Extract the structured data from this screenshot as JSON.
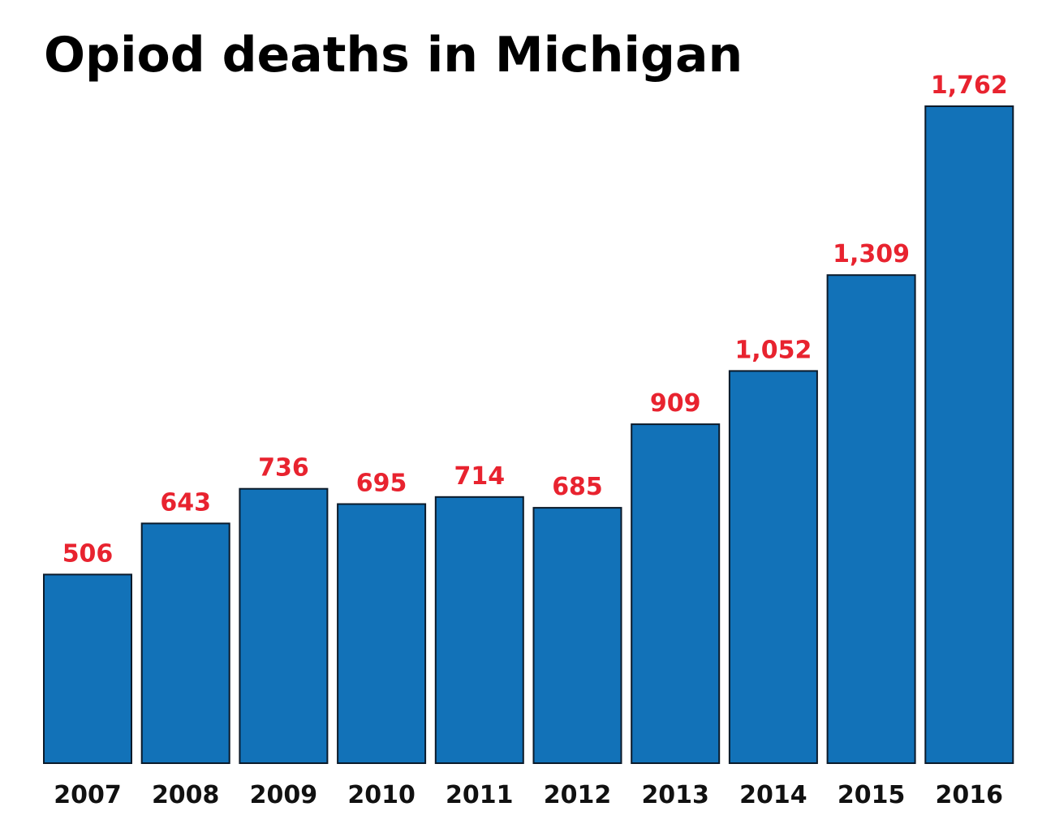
{
  "chart_data": {
    "type": "bar",
    "title": "Opiod deaths in Michigan",
    "xlabel": "",
    "ylabel": "",
    "categories": [
      "2007",
      "2008",
      "2009",
      "2010",
      "2011",
      "2012",
      "2013",
      "2014",
      "2015",
      "2016"
    ],
    "values": [
      506,
      643,
      736,
      695,
      714,
      685,
      909,
      1052,
      1309,
      1762
    ],
    "data_labels": [
      "506",
      "643",
      "736",
      "695",
      "714",
      "685",
      "909",
      "1,052",
      "1,309",
      "1,762"
    ],
    "ylim": [
      0,
      1762
    ],
    "grid": false,
    "legend": "none",
    "bar_color": "#1272b8",
    "label_color": "#e8232f"
  }
}
